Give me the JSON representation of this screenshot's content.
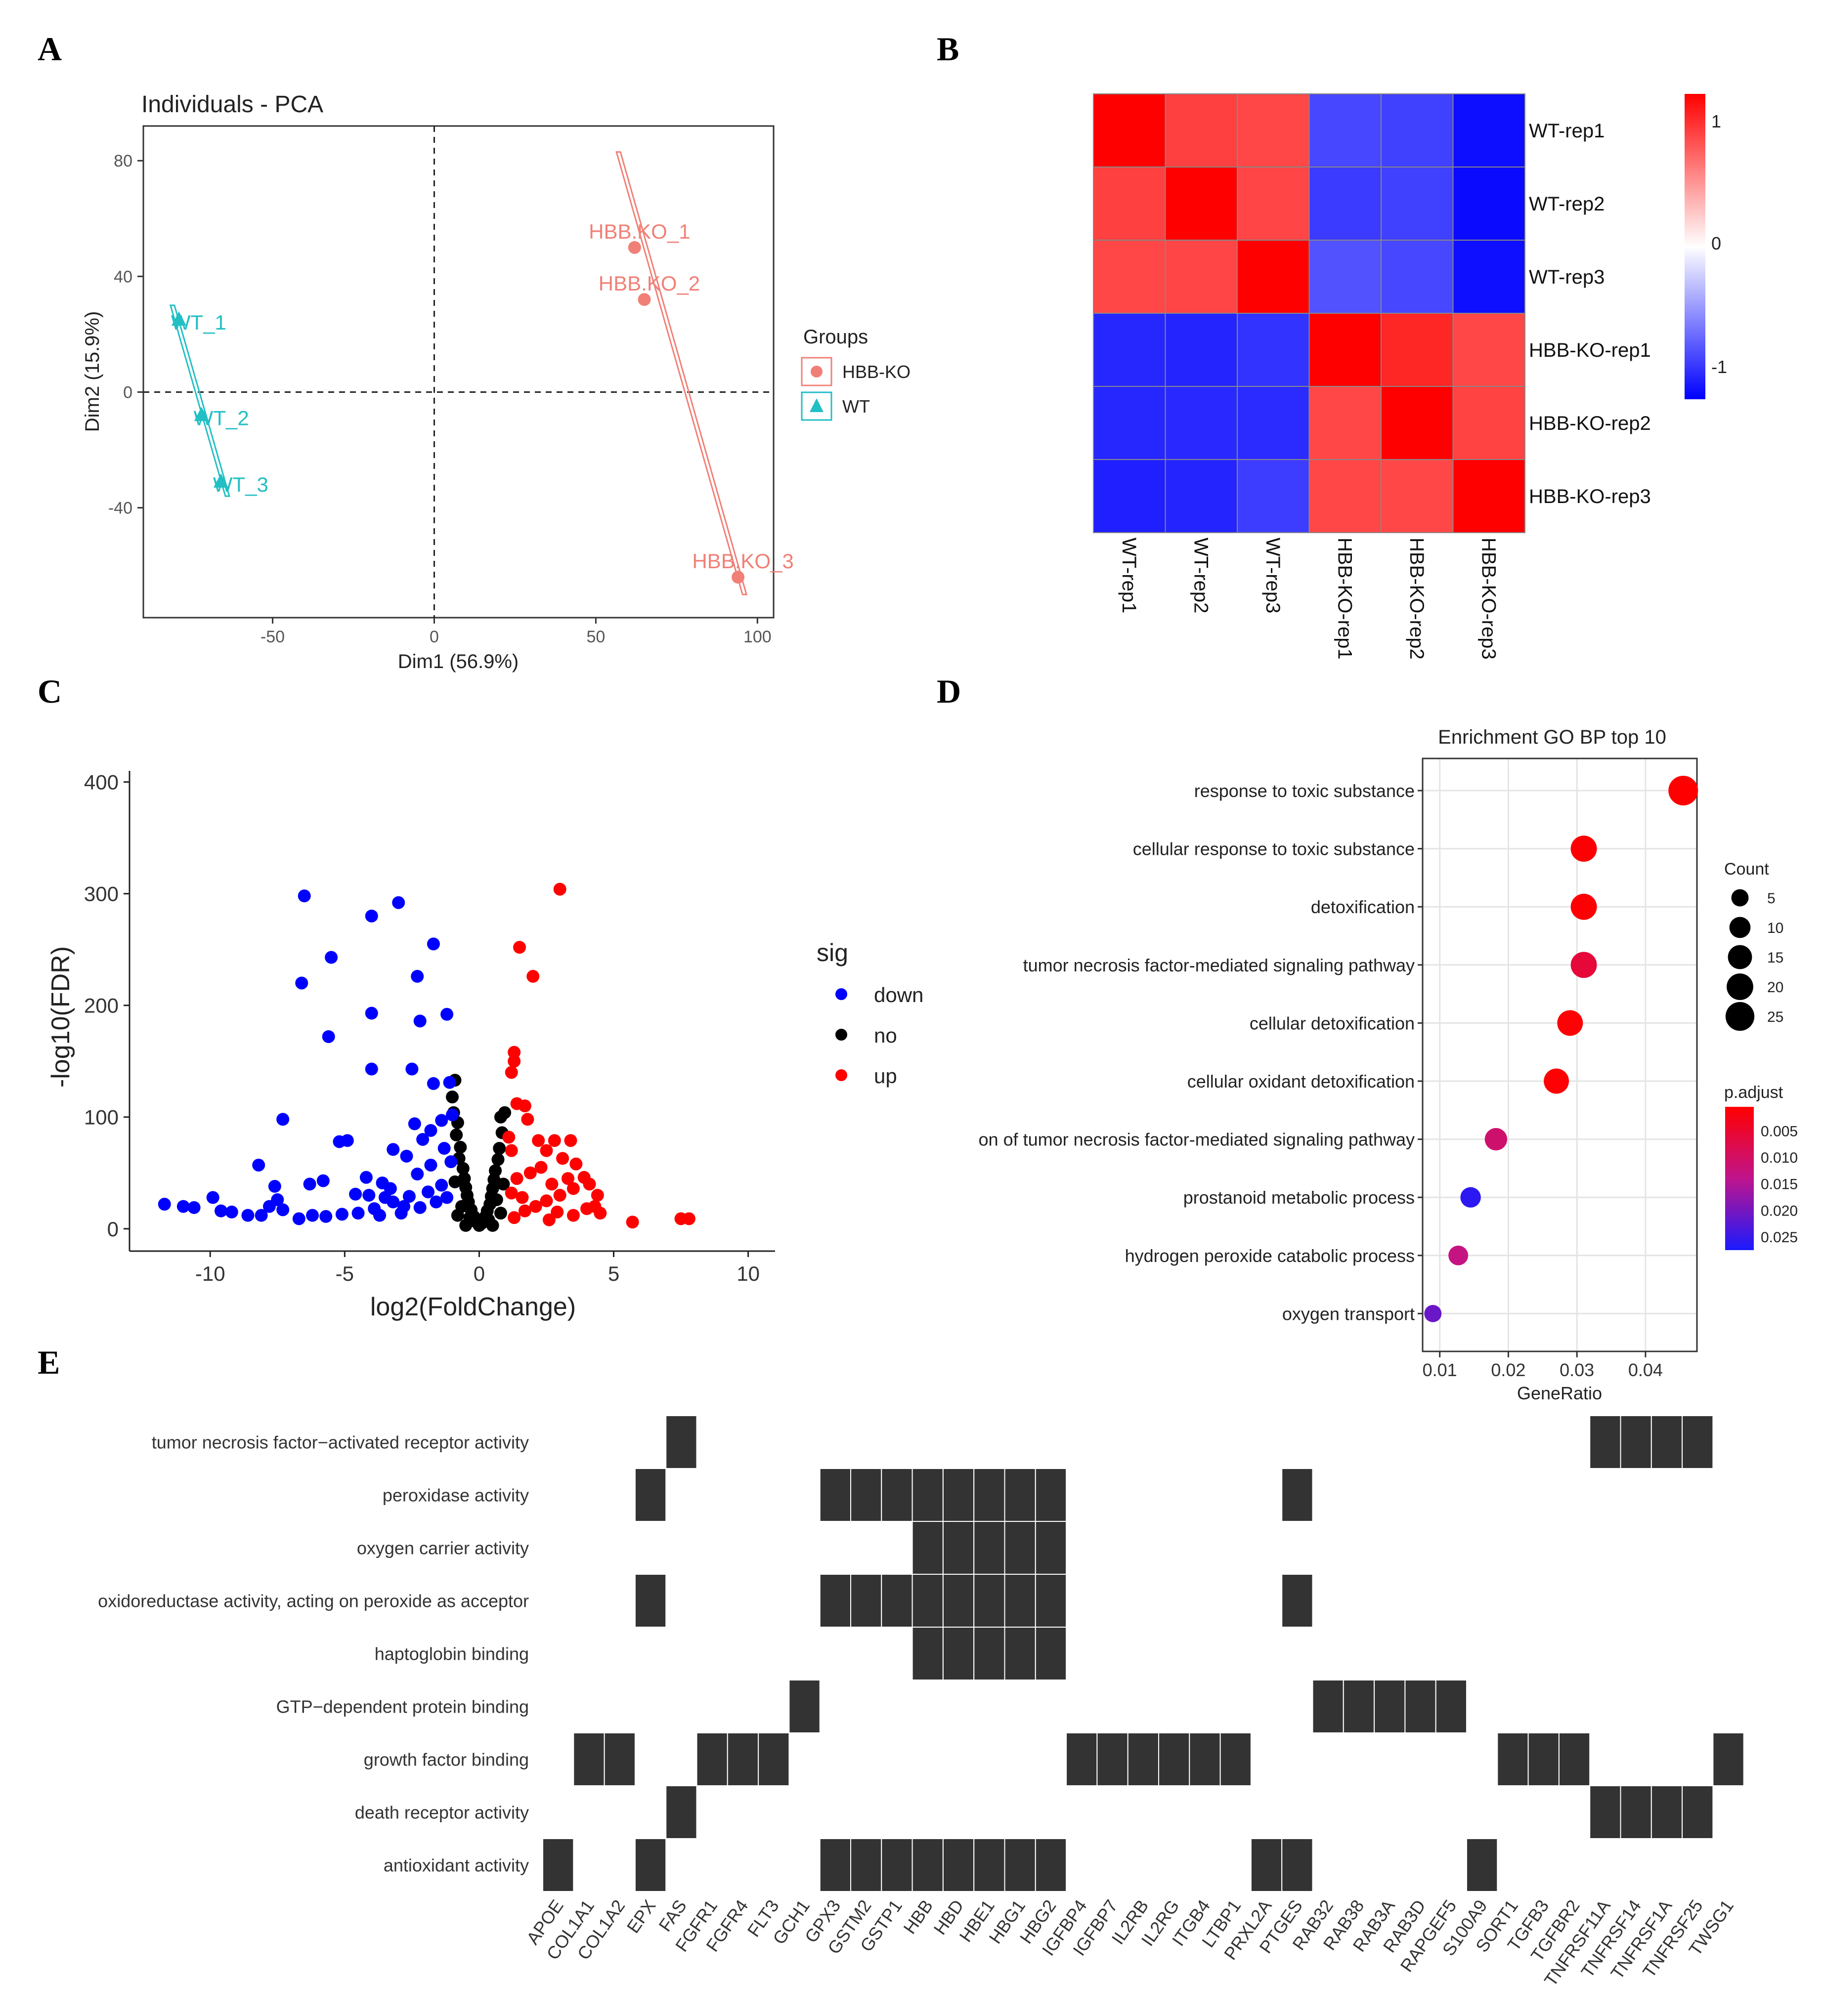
{
  "panel_letters": [
    "A",
    "B",
    "C",
    "D",
    "E"
  ],
  "chart_data": [
    {
      "panel": "A",
      "type": "scatter",
      "title": "Individuals - PCA",
      "xlabel": "Dim1 (56.9%)",
      "ylabel": "Dim2 (15.9%)",
      "xlim": [
        -90,
        105
      ],
      "ylim": [
        -78,
        92
      ],
      "xticks": [
        -50,
        0,
        50,
        100
      ],
      "yticks": [
        -40,
        0,
        40,
        80
      ],
      "legend": {
        "title": "Groups",
        "position": "right"
      },
      "series": [
        {
          "name": "HBB-KO",
          "color": "#F08077",
          "marker": "circle",
          "points": [
            {
              "label": "HBB.KO_1",
              "x": 62,
              "y": 50
            },
            {
              "label": "HBB.KO_2",
              "x": 65,
              "y": 32
            },
            {
              "label": "HBB.KO_3",
              "x": 94,
              "y": -64
            }
          ]
        },
        {
          "name": "WT",
          "color": "#22BFC4",
          "marker": "triangle",
          "points": [
            {
              "label": "WT_1",
              "x": -79,
              "y": 25
            },
            {
              "label": "WT_2",
              "x": -72,
              "y": -8
            },
            {
              "label": "WT_3",
              "x": -66,
              "y": -31
            }
          ]
        }
      ]
    },
    {
      "panel": "B",
      "type": "heatmap",
      "rows": [
        "WT-rep1",
        "WT-rep2",
        "WT-rep3",
        "HBB-KO-rep1",
        "HBB-KO-rep2",
        "HBB-KO-rep3"
      ],
      "columns": [
        "WT-rep1",
        "WT-rep2",
        "WT-rep3",
        "HBB-KO-rep1",
        "HBB-KO-rep2",
        "HBB-KO-rep3"
      ],
      "values": [
        [
          1.0,
          0.75,
          0.72,
          -0.72,
          -0.75,
          -0.95
        ],
        [
          0.75,
          1.0,
          0.73,
          -0.77,
          -0.75,
          -0.96
        ],
        [
          0.72,
          0.73,
          1.0,
          -0.68,
          -0.72,
          -0.94
        ],
        [
          -0.85,
          -0.86,
          -0.8,
          1.0,
          0.85,
          0.72
        ],
        [
          -0.85,
          -0.84,
          -0.83,
          0.72,
          1.0,
          0.74
        ],
        [
          -0.88,
          -0.86,
          -0.76,
          0.72,
          0.72,
          1.0
        ]
      ],
      "colorbar": {
        "ticks": [
          1,
          0,
          -1
        ],
        "low": "#0000FF",
        "mid": "#FFFFFF",
        "high": "#FF0000"
      }
    },
    {
      "panel": "C",
      "type": "scatter",
      "xlabel": "log2(FoldChange)",
      "ylabel": "-log10(FDR)",
      "xlim": [
        -13,
        11
      ],
      "ylim": [
        -20,
        410
      ],
      "xticks": [
        -10,
        -5,
        0,
        5,
        10
      ],
      "yticks": [
        0,
        100,
        200,
        300,
        400
      ],
      "legend": {
        "title": "sig",
        "position": "right"
      },
      "series": [
        {
          "name": "down",
          "color": "#0000FF"
        },
        {
          "name": "no",
          "color": "#000000"
        },
        {
          "name": "up",
          "color": "#FF0000"
        }
      ],
      "points_down": [
        [
          -6.5,
          298
        ],
        [
          -3,
          292
        ],
        [
          -4,
          280
        ],
        [
          -5.5,
          243
        ],
        [
          -1.7,
          255
        ],
        [
          -6.6,
          220
        ],
        [
          -2.3,
          226
        ],
        [
          -5.6,
          172
        ],
        [
          -4,
          193
        ],
        [
          -2.2,
          186
        ],
        [
          -1.2,
          192
        ],
        [
          -4,
          143
        ],
        [
          -2.5,
          143
        ],
        [
          -1.7,
          130
        ],
        [
          -1.1,
          131
        ],
        [
          -7.3,
          98
        ],
        [
          -8.2,
          57
        ],
        [
          -9.9,
          28
        ],
        [
          -11.7,
          22
        ],
        [
          -11,
          20
        ],
        [
          -10.6,
          19
        ],
        [
          -9.6,
          16
        ],
        [
          -9.2,
          15
        ],
        [
          -8.6,
          12
        ],
        [
          -8.1,
          12
        ],
        [
          -7.8,
          20
        ],
        [
          -7.5,
          26
        ],
        [
          -7.6,
          38
        ],
        [
          -6.3,
          40
        ],
        [
          -5.8,
          43
        ],
        [
          -5.2,
          78
        ],
        [
          -4.9,
          79
        ],
        [
          -4.2,
          46
        ],
        [
          -3.6,
          41
        ],
        [
          -3.3,
          36
        ],
        [
          -2.7,
          65
        ],
        [
          -3.2,
          71
        ],
        [
          -2.1,
          80
        ],
        [
          -1.4,
          97
        ],
        [
          -1,
          102
        ],
        [
          -2.3,
          49
        ],
        [
          -1.8,
          57
        ],
        [
          -1.4,
          39
        ],
        [
          -2.6,
          29
        ],
        [
          -3.2,
          24
        ],
        [
          -3.9,
          18
        ],
        [
          -4.5,
          14
        ],
        [
          -5.1,
          13
        ],
        [
          -5.7,
          11
        ],
        [
          -6.2,
          12
        ],
        [
          -6.7,
          9
        ],
        [
          -7.3,
          17
        ],
        [
          -3.7,
          12
        ],
        [
          -2.9,
          14
        ],
        [
          -2.2,
          19
        ],
        [
          -1.6,
          24
        ],
        [
          -1.2,
          28
        ],
        [
          -1.9,
          33
        ],
        [
          -2.8,
          20
        ],
        [
          -3.5,
          28
        ],
        [
          -4.1,
          30
        ],
        [
          -4.6,
          31
        ],
        [
          -1.3,
          72
        ],
        [
          -1.8,
          88
        ],
        [
          -2.4,
          94
        ],
        [
          -1.05,
          60
        ]
      ],
      "points_no": [
        [
          -0.9,
          133
        ],
        [
          -1.0,
          118
        ],
        [
          -0.95,
          104
        ],
        [
          -0.8,
          95
        ],
        [
          -0.85,
          84
        ],
        [
          -0.7,
          73
        ],
        [
          -0.75,
          63
        ],
        [
          -0.6,
          54
        ],
        [
          -0.55,
          45
        ],
        [
          -0.5,
          37
        ],
        [
          -0.45,
          30
        ],
        [
          -0.4,
          24
        ],
        [
          -0.3,
          17
        ],
        [
          -0.2,
          11
        ],
        [
          -0.1,
          6
        ],
        [
          0,
          3
        ],
        [
          0.1,
          5
        ],
        [
          0.2,
          10
        ],
        [
          0.3,
          16
        ],
        [
          0.4,
          22
        ],
        [
          0.45,
          29
        ],
        [
          0.5,
          36
        ],
        [
          0.55,
          44
        ],
        [
          0.6,
          52
        ],
        [
          0.7,
          62
        ],
        [
          0.75,
          72
        ],
        [
          0.85,
          86
        ],
        [
          0.8,
          100
        ],
        [
          0.95,
          104
        ],
        [
          -0.65,
          20
        ],
        [
          -0.35,
          10
        ],
        [
          0.35,
          8
        ],
        [
          0.65,
          26
        ],
        [
          0.9,
          40
        ],
        [
          -0.9,
          42
        ],
        [
          -0.8,
          12
        ],
        [
          0.8,
          14
        ],
        [
          -0.5,
          3
        ],
        [
          0.5,
          3
        ]
      ],
      "points_up": [
        [
          3,
          304
        ],
        [
          1.5,
          252
        ],
        [
          2,
          226
        ],
        [
          1.3,
          158
        ],
        [
          1.3,
          150
        ],
        [
          1.2,
          140
        ],
        [
          1.4,
          112
        ],
        [
          1.7,
          110
        ],
        [
          1.8,
          98
        ],
        [
          1.1,
          82
        ],
        [
          1.2,
          70
        ],
        [
          2.8,
          79
        ],
        [
          3.4,
          79
        ],
        [
          2.2,
          79
        ],
        [
          2.5,
          70
        ],
        [
          3.1,
          63
        ],
        [
          3.6,
          58
        ],
        [
          3.9,
          46
        ],
        [
          4.1,
          40
        ],
        [
          3.5,
          36
        ],
        [
          3,
          30
        ],
        [
          2.5,
          25
        ],
        [
          2.1,
          20
        ],
        [
          1.7,
          16
        ],
        [
          2.9,
          15
        ],
        [
          3.5,
          12
        ],
        [
          4,
          18
        ],
        [
          4.3,
          20
        ],
        [
          4.5,
          14
        ],
        [
          5.7,
          6
        ],
        [
          7.5,
          9
        ],
        [
          7.8,
          9
        ],
        [
          1.4,
          45
        ],
        [
          1.9,
          50
        ],
        [
          2.3,
          55
        ],
        [
          1.2,
          32
        ],
        [
          1.6,
          28
        ],
        [
          2.7,
          40
        ],
        [
          3.3,
          45
        ],
        [
          1.3,
          10
        ],
        [
          2.6,
          8
        ],
        [
          4.4,
          30
        ]
      ]
    },
    {
      "panel": "D",
      "type": "scatter",
      "title": "Enrichment GO BP top 10",
      "xlabel": "GeneRatio",
      "xlim": [
        0.0075,
        0.0475
      ],
      "xticks": [
        0.01,
        0.02,
        0.03,
        0.04
      ],
      "xtick_labels": [
        "0.01",
        "0.02",
        "0.03",
        "0.04"
      ],
      "terms": [
        {
          "term": "response to toxic substance",
          "generatio": 0.0455,
          "count": 27,
          "padj": 0.0005
        },
        {
          "term": "cellular response to toxic substance",
          "generatio": 0.031,
          "count": 19,
          "padj": 0.0008
        },
        {
          "term": "detoxification",
          "generatio": 0.031,
          "count": 19,
          "padj": 0.0008
        },
        {
          "term": "tumor necrosis factor-mediated signaling pathway",
          "generatio": 0.031,
          "count": 19,
          "padj": 0.006
        },
        {
          "term": "cellular detoxification",
          "generatio": 0.029,
          "count": 18,
          "padj": 0.001
        },
        {
          "term": "cellular oxidant detoxification",
          "generatio": 0.027,
          "count": 17,
          "padj": 0.001
        },
        {
          "term": "on of tumor necrosis factor-mediated signaling pathway",
          "generatio": 0.0182,
          "count": 12,
          "padj": 0.011
        },
        {
          "term": "prostanoid metabolic process",
          "generatio": 0.0145,
          "count": 9,
          "padj": 0.026
        },
        {
          "term": "hydrogen peroxide catabolic process",
          "generatio": 0.0127,
          "count": 8,
          "padj": 0.013
        },
        {
          "term": "oxygen transport",
          "generatio": 0.009,
          "count": 5,
          "padj": 0.021
        }
      ],
      "size_legend": {
        "title": "Count",
        "values": [
          5,
          10,
          15,
          20,
          25
        ]
      },
      "color_legend": {
        "title": "p.adjust",
        "ticks": [
          "0.005",
          "0.010",
          "0.015",
          "0.020",
          "0.025"
        ],
        "values": [
          0.005,
          0.01,
          0.015,
          0.02,
          0.025
        ],
        "range": [
          0.0005,
          0.0275
        ],
        "low": "#FF0000",
        "high": "#0000FF"
      }
    },
    {
      "panel": "E",
      "type": "heatmap",
      "rows": [
        "tumor necrosis factor−activated receptor activity",
        "peroxidase activity",
        "oxygen carrier activity",
        "oxidoreductase activity, acting on peroxide as acceptor",
        "haptoglobin binding",
        "GTP−dependent protein binding",
        "growth factor binding",
        "death receptor activity",
        "antioxidant activity"
      ],
      "genes": [
        "APOE",
        "COL1A1",
        "COL1A2",
        "EPX",
        "FAS",
        "FGFR1",
        "FGFR4",
        "FLT3",
        "GCH1",
        "GPX3",
        "GSTM2",
        "GSTP1",
        "HBB",
        "HBD",
        "HBE1",
        "HBG1",
        "HBG2",
        "IGFBP4",
        "IGFBP7",
        "IL2RB",
        "IL2RG",
        "ITGB4",
        "LTBP1",
        "PRXL2A",
        "PTGES",
        "RAB32",
        "RAB38",
        "RAB3A",
        "RAB3D",
        "RAPGEF5",
        "S100A9",
        "SORT1",
        "TGFB3",
        "TGFBR2",
        "TNFRSF11A",
        "TNFRSF14",
        "TNFRSF1A",
        "TNFRSF25",
        "TWSG1"
      ],
      "membership": [
        [
          "FAS",
          "TNFRSF11A",
          "TNFRSF14",
          "TNFRSF1A",
          "TNFRSF25"
        ],
        [
          "EPX",
          "GPX3",
          "GSTM2",
          "GSTP1",
          "HBB",
          "HBD",
          "HBE1",
          "HBG1",
          "HBG2",
          "PTGES"
        ],
        [
          "HBB",
          "HBD",
          "HBE1",
          "HBG1",
          "HBG2"
        ],
        [
          "EPX",
          "GPX3",
          "GSTM2",
          "GSTP1",
          "HBB",
          "HBD",
          "HBE1",
          "HBG1",
          "HBG2",
          "PTGES"
        ],
        [
          "HBB",
          "HBD",
          "HBE1",
          "HBG1",
          "HBG2"
        ],
        [
          "GCH1",
          "RAB32",
          "RAB38",
          "RAB3A",
          "RAB3D",
          "RAPGEF5"
        ],
        [
          "COL1A1",
          "COL1A2",
          "FGFR1",
          "FGFR4",
          "FLT3",
          "IGFBP4",
          "IGFBP7",
          "IL2RB",
          "IL2RG",
          "ITGB4",
          "LTBP1",
          "SORT1",
          "TGFB3",
          "TGFBR2",
          "TWSG1"
        ],
        [
          "FAS",
          "TNFRSF11A",
          "TNFRSF14",
          "TNFRSF1A",
          "TNFRSF25"
        ],
        [
          "APOE",
          "EPX",
          "GPX3",
          "GSTM2",
          "GSTP1",
          "HBB",
          "HBD",
          "HBE1",
          "HBG1",
          "HBG2",
          "PRXL2A",
          "PTGES",
          "S100A9"
        ]
      ]
    }
  ]
}
